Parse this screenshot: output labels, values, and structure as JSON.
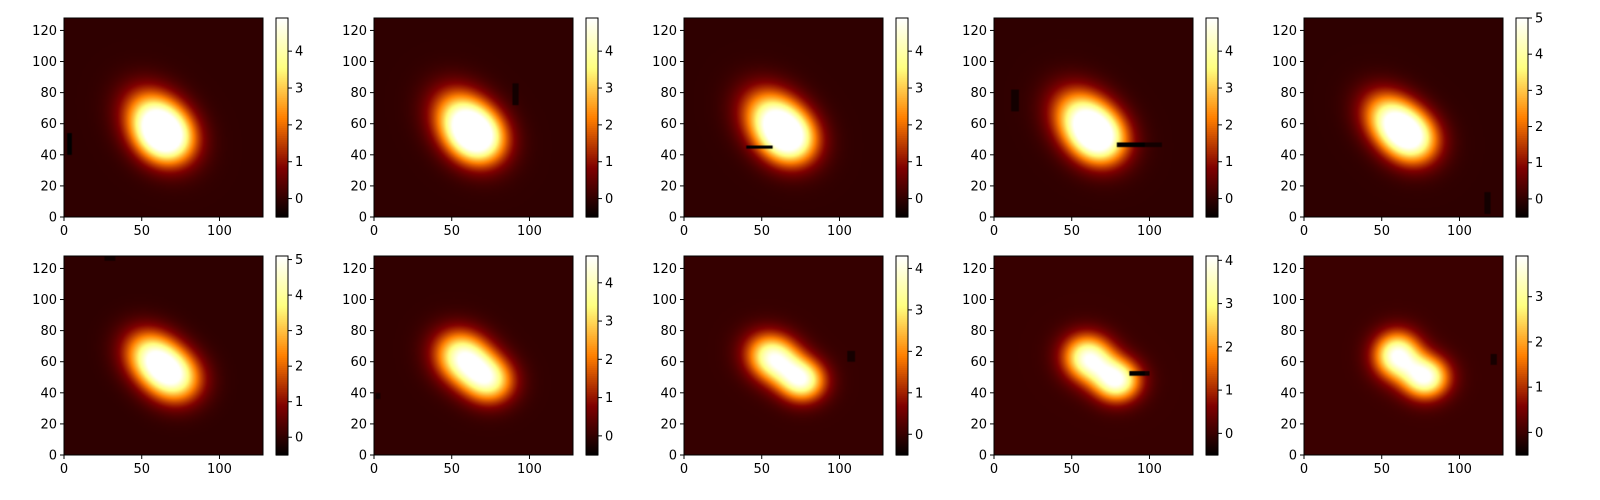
{
  "chart_data": {
    "type": "heatmap",
    "colormap": "afmhot",
    "layout": {
      "rows": 2,
      "cols": 5
    },
    "panels": [
      {
        "name": "panel-1",
        "blobs": [
          [
            61,
            59,
            16,
            12,
            5,
            -0.85
          ],
          [
            65,
            51,
            12,
            11,
            3,
            -0.5
          ]
        ],
        "vmin": -0.5,
        "vmax": 4.9,
        "cbar_ticks": [
          0,
          1,
          2,
          3,
          4
        ],
        "xticks": [
          0,
          50,
          100
        ],
        "yticks": [
          0,
          20,
          40,
          60,
          80,
          100,
          120
        ],
        "xlim": [
          0,
          128
        ],
        "ylim": [
          0,
          128
        ],
        "artifacts": [
          [
            2,
            40,
            5,
            54,
            -0.5
          ]
        ]
      },
      {
        "name": "panel-2",
        "blobs": [
          [
            60,
            59,
            16,
            12,
            5,
            -0.85
          ],
          [
            67,
            51,
            12,
            11,
            3,
            -0.5
          ]
        ],
        "vmin": -0.5,
        "vmax": 4.9,
        "cbar_ticks": [
          0,
          1,
          2,
          3,
          4
        ],
        "xticks": [
          0,
          50,
          100
        ],
        "yticks": [
          0,
          20,
          40,
          60,
          80,
          100,
          120
        ],
        "xlim": [
          0,
          128
        ],
        "ylim": [
          0,
          128
        ],
        "artifacts": [
          [
            89,
            72,
            93,
            86,
            -0.3
          ]
        ]
      },
      {
        "name": "panel-3",
        "blobs": [
          [
            60,
            60,
            16,
            12,
            5,
            -0.8
          ],
          [
            68,
            50,
            12,
            11,
            3,
            -0.5
          ]
        ],
        "vmin": -0.5,
        "vmax": 4.9,
        "cbar_ticks": [
          0,
          1,
          2,
          3,
          4
        ],
        "xticks": [
          0,
          50,
          100
        ],
        "yticks": [
          0,
          20,
          40,
          60,
          80,
          100,
          120
        ],
        "xlim": [
          0,
          128
        ],
        "ylim": [
          0,
          128
        ],
        "artifacts": [
          [
            40,
            44,
            57,
            46,
            -0.5
          ]
        ]
      },
      {
        "name": "panel-4",
        "blobs": [
          [
            60,
            60,
            16,
            12,
            5,
            -0.8
          ],
          [
            68,
            50,
            12,
            11,
            3,
            -0.5
          ]
        ],
        "vmin": -0.5,
        "vmax": 4.9,
        "cbar_ticks": [
          0,
          1,
          2,
          3,
          4
        ],
        "xticks": [
          0,
          50,
          100
        ],
        "yticks": [
          0,
          20,
          40,
          60,
          80,
          100,
          120
        ],
        "xlim": [
          0,
          128
        ],
        "ylim": [
          0,
          128
        ],
        "artifacts": [
          [
            11,
            68,
            16,
            82,
            -0.3
          ],
          [
            79,
            45,
            97,
            48,
            -0.5
          ],
          [
            97,
            45,
            108,
            48,
            -0.3
          ]
        ]
      },
      {
        "name": "panel-5",
        "blobs": [
          [
            59,
            60,
            15,
            11,
            5,
            -0.75
          ],
          [
            70,
            50,
            12,
            11,
            3,
            -0.5
          ]
        ],
        "vmin": -0.5,
        "vmax": 5,
        "cbar_ticks": [
          0,
          1,
          2,
          3,
          4,
          5
        ],
        "xticks": [
          0,
          50,
          100
        ],
        "yticks": [
          0,
          20,
          40,
          60,
          80,
          100,
          120
        ],
        "xlim": [
          0,
          128
        ],
        "ylim": [
          0,
          128
        ],
        "artifacts": [
          [
            116,
            2,
            120,
            16,
            -0.3
          ]
        ]
      },
      {
        "name": "panel-6",
        "blobs": [
          [
            59,
            61,
            14,
            11,
            5,
            -0.7
          ],
          [
            72,
            49,
            12,
            11,
            3.2,
            -0.3
          ]
        ],
        "vmin": -0.5,
        "vmax": 5.1,
        "cbar_ticks": [
          0,
          1,
          2,
          3,
          4,
          5
        ],
        "xticks": [
          0,
          50,
          100
        ],
        "yticks": [
          0,
          20,
          40,
          60,
          80,
          100,
          120
        ],
        "xlim": [
          0,
          128
        ],
        "ylim": [
          0,
          128
        ],
        "artifacts": [
          [
            26,
            125,
            33,
            128,
            -0.3
          ]
        ]
      },
      {
        "name": "panel-7",
        "blobs": [
          [
            58,
            62,
            13,
            11,
            4.6,
            -0.6
          ],
          [
            74,
            48,
            11,
            10,
            3.5,
            -0.2
          ]
        ],
        "vmin": -0.5,
        "vmax": 4.7,
        "cbar_ticks": [
          0,
          1,
          2,
          3,
          4
        ],
        "xticks": [
          0,
          50,
          100
        ],
        "yticks": [
          0,
          20,
          40,
          60,
          80,
          100,
          120
        ],
        "xlim": [
          0,
          128
        ],
        "ylim": [
          0,
          128
        ],
        "artifacts": [
          [
            1,
            36,
            4,
            40,
            -0.3
          ]
        ]
      },
      {
        "name": "panel-8",
        "blobs": [
          [
            58,
            62,
            12,
            10,
            4.2,
            -0.5
          ],
          [
            76,
            48,
            10,
            9,
            3.8,
            -0.1
          ]
        ],
        "vmin": -0.5,
        "vmax": 4.3,
        "cbar_ticks": [
          0,
          1,
          2,
          3,
          4
        ],
        "xticks": [
          0,
          50,
          100
        ],
        "yticks": [
          0,
          20,
          40,
          60,
          80,
          100,
          120
        ],
        "xlim": [
          0,
          128
        ],
        "ylim": [
          0,
          128
        ],
        "artifacts": [
          [
            105,
            60,
            110,
            67,
            -0.3
          ]
        ]
      },
      {
        "name": "panel-9",
        "blobs": [
          [
            61,
            62,
            11,
            10,
            4,
            -0.4
          ],
          [
            79,
            48,
            10,
            9,
            4,
            0
          ]
        ],
        "vmin": -0.5,
        "vmax": 4.1,
        "cbar_ticks": [
          0,
          1,
          2,
          3,
          4
        ],
        "xticks": [
          0,
          50,
          100
        ],
        "yticks": [
          0,
          20,
          40,
          60,
          80,
          100,
          120
        ],
        "xlim": [
          0,
          128
        ],
        "ylim": [
          0,
          128
        ],
        "artifacts": [
          [
            87,
            51,
            97,
            54,
            -0.5
          ],
          [
            97,
            51,
            100,
            54,
            -0.3
          ]
        ]
      },
      {
        "name": "panel-10",
        "blobs": [
          [
            60,
            64,
            10,
            10,
            3.9,
            -0.3
          ],
          [
            78,
            50,
            10,
            9,
            3.9,
            0
          ]
        ],
        "vmin": -0.5,
        "vmax": 3.9,
        "cbar_ticks": [
          0,
          1,
          2,
          3
        ],
        "xticks": [
          0,
          50,
          100
        ],
        "yticks": [
          0,
          20,
          40,
          60,
          80,
          100,
          120
        ],
        "xlim": [
          0,
          128
        ],
        "ylim": [
          0,
          128
        ],
        "artifacts": [
          [
            120,
            58,
            124,
            65,
            -0.3
          ]
        ]
      }
    ]
  }
}
